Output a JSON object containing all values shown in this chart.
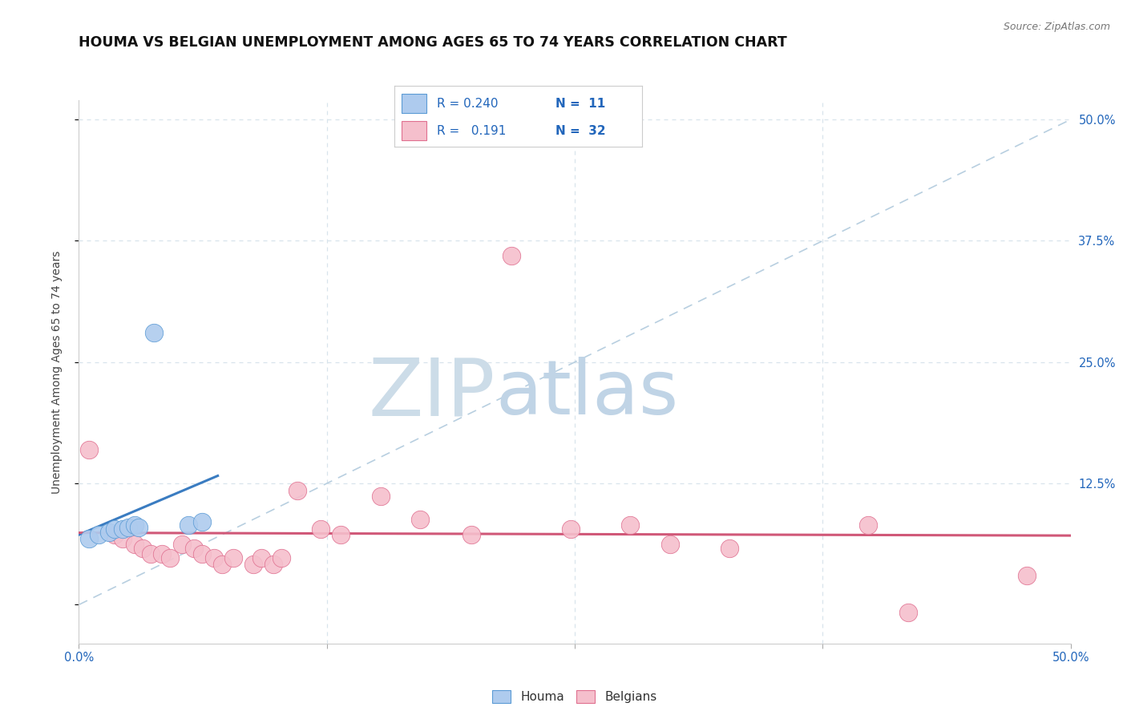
{
  "title": "HOUMA VS BELGIAN UNEMPLOYMENT AMONG AGES 65 TO 74 YEARS CORRELATION CHART",
  "source": "Source: ZipAtlas.com",
  "ylabel": "Unemployment Among Ages 65 to 74 years",
  "xlim": [
    0.0,
    0.5
  ],
  "ylim": [
    -0.04,
    0.52
  ],
  "xticks": [
    0.0,
    0.125,
    0.25,
    0.375,
    0.5
  ],
  "yticks": [
    0.0,
    0.125,
    0.25,
    0.375,
    0.5
  ],
  "background_color": "#ffffff",
  "houma_color": "#aecbee",
  "houma_edge_color": "#5b9bd5",
  "belgian_color": "#f5bfcc",
  "belgian_edge_color": "#e07090",
  "houma_line_color": "#3a7cc1",
  "belgian_line_color": "#d05878",
  "legend_houma_R": "0.240",
  "legend_houma_N": "11",
  "legend_belgian_R": "0.191",
  "legend_belgian_N": "32",
  "dashed_line_color": "#b8cfe0",
  "grid_color": "#d8e4ec",
  "houma_scatter": [
    [
      0.005,
      0.068
    ],
    [
      0.01,
      0.072
    ],
    [
      0.015,
      0.075
    ],
    [
      0.018,
      0.078
    ],
    [
      0.022,
      0.078
    ],
    [
      0.025,
      0.08
    ],
    [
      0.028,
      0.082
    ],
    [
      0.03,
      0.08
    ],
    [
      0.038,
      0.28
    ],
    [
      0.055,
      0.082
    ],
    [
      0.062,
      0.085
    ]
  ],
  "belgian_scatter": [
    [
      0.005,
      0.16
    ],
    [
      0.018,
      0.072
    ],
    [
      0.022,
      0.068
    ],
    [
      0.028,
      0.062
    ],
    [
      0.032,
      0.058
    ],
    [
      0.036,
      0.052
    ],
    [
      0.042,
      0.052
    ],
    [
      0.046,
      0.048
    ],
    [
      0.052,
      0.062
    ],
    [
      0.058,
      0.058
    ],
    [
      0.062,
      0.052
    ],
    [
      0.068,
      0.048
    ],
    [
      0.072,
      0.042
    ],
    [
      0.078,
      0.048
    ],
    [
      0.088,
      0.042
    ],
    [
      0.092,
      0.048
    ],
    [
      0.098,
      0.042
    ],
    [
      0.102,
      0.048
    ],
    [
      0.11,
      0.118
    ],
    [
      0.122,
      0.078
    ],
    [
      0.132,
      0.072
    ],
    [
      0.152,
      0.112
    ],
    [
      0.172,
      0.088
    ],
    [
      0.198,
      0.072
    ],
    [
      0.218,
      0.36
    ],
    [
      0.248,
      0.078
    ],
    [
      0.278,
      0.082
    ],
    [
      0.298,
      0.062
    ],
    [
      0.328,
      0.058
    ],
    [
      0.398,
      0.082
    ],
    [
      0.418,
      -0.008
    ],
    [
      0.478,
      0.03
    ]
  ],
  "watermark_zip_color": "#c5d8ec",
  "watermark_atlas_color": "#c8d8e8",
  "watermark_zip_size": 72,
  "watermark_atlas_size": 68
}
